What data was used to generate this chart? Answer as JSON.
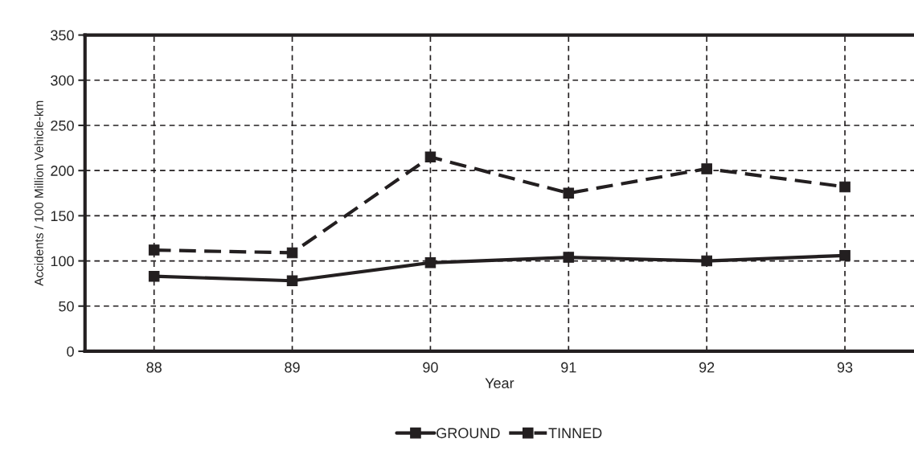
{
  "chart_data": {
    "type": "line",
    "xlabel": "Year",
    "ylabel": "Accidents / 100 Million Vehicle-km",
    "categories": [
      "88",
      "89",
      "90",
      "91",
      "92",
      "93"
    ],
    "series": [
      {
        "name": "GROUND",
        "color": "#231f20",
        "line_style": "solid",
        "values": [
          83,
          78,
          98,
          104,
          100,
          106
        ]
      },
      {
        "name": "TINNED",
        "color": "#231f20",
        "line_style": "dashed",
        "values": [
          112,
          109,
          215,
          175,
          202,
          182
        ]
      }
    ],
    "ylim": [
      0,
      350
    ],
    "yticks": [
      0,
      50,
      100,
      150,
      200,
      250,
      300,
      350
    ],
    "grid": true,
    "legend": "bottom",
    "marker": "square"
  }
}
